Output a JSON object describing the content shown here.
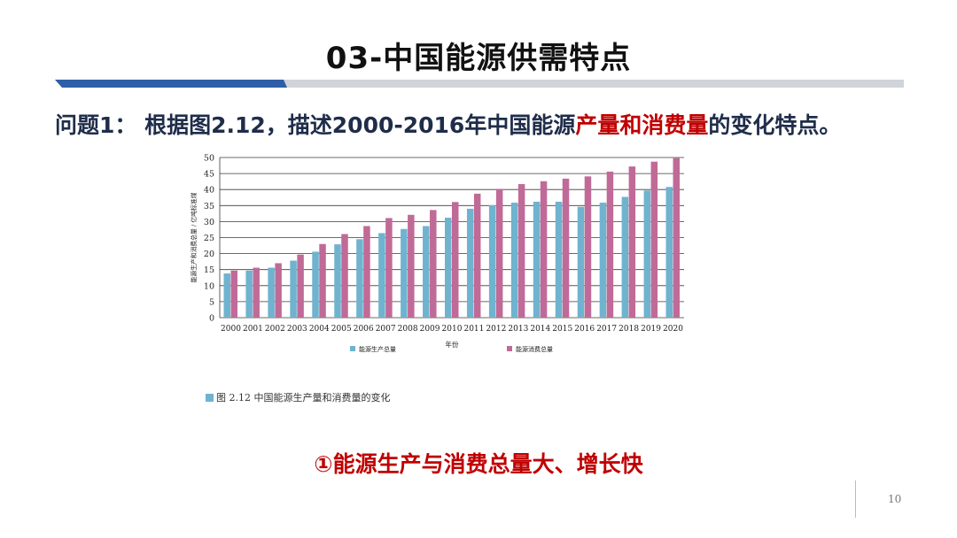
{
  "slide": {
    "title": "03-中国能源供需特点",
    "question_prefix": "问题1：  根据图2.12，描述2000-2016年中国能源",
    "question_highlight": "产量和消费量",
    "question_suffix": "的变化特点。",
    "caption": "图 2.12   中国能源生产量和消费量的变化",
    "conclusion": "①能源生产与消费总量大、增长快",
    "page_number": "10"
  },
  "colors": {
    "production": "#6fb3cf",
    "consumption": "#c06a97",
    "strip_blue": "#2e5ea8",
    "strip_gray": "#d0d3d8",
    "highlight": "#c00000"
  },
  "chart_data": {
    "type": "bar",
    "categories": [
      "2000",
      "2001",
      "2002",
      "2003",
      "2004",
      "2005",
      "2006",
      "2007",
      "2008",
      "2009",
      "2010",
      "2011",
      "2012",
      "2013",
      "2014",
      "2015",
      "2016",
      "2017",
      "2018",
      "2019",
      "2020"
    ],
    "series": [
      {
        "name": "能源生产总量",
        "values": [
          13.8,
          14.7,
          15.6,
          17.8,
          20.6,
          22.9,
          24.5,
          26.4,
          27.7,
          28.6,
          31.2,
          34.0,
          35.1,
          35.9,
          36.2,
          36.2,
          34.6,
          35.9,
          37.7,
          39.7,
          40.8
        ]
      },
      {
        "name": "能源消费总量",
        "values": [
          14.7,
          15.6,
          17.0,
          19.7,
          23.0,
          26.1,
          28.6,
          31.1,
          32.1,
          33.6,
          36.1,
          38.7,
          40.2,
          41.7,
          42.6,
          43.4,
          44.1,
          45.6,
          47.2,
          48.7,
          49.8
        ]
      }
    ],
    "yticks": [
      "0",
      "5",
      "10",
      "15",
      "20",
      "25",
      "30",
      "35",
      "40",
      "45",
      "50"
    ],
    "ylim": [
      0,
      50
    ],
    "xlabel": "年份",
    "ylabel": "能源生产和消费总量 / 亿吨标准煤",
    "grid": true,
    "legend_position": "bottom"
  }
}
